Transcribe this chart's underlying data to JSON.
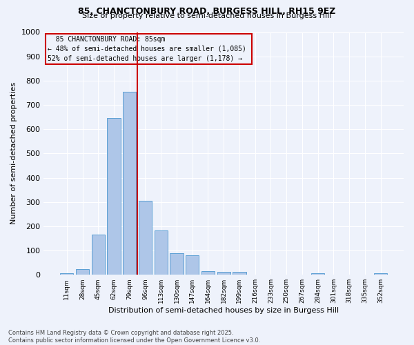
{
  "title": "85, CHANCTONBURY ROAD, BURGESS HILL, RH15 9EZ",
  "subtitle": "Size of property relative to semi-detached houses in Burgess Hill",
  "xlabel": "Distribution of semi-detached houses by size in Burgess Hill",
  "ylabel": "Number of semi-detached properties",
  "footnote": "Contains HM Land Registry data © Crown copyright and database right 2025.\nContains public sector information licensed under the Open Government Licence v3.0.",
  "categories": [
    "11sqm",
    "28sqm",
    "45sqm",
    "62sqm",
    "79sqm",
    "96sqm",
    "113sqm",
    "130sqm",
    "147sqm",
    "164sqm",
    "182sqm",
    "199sqm",
    "216sqm",
    "233sqm",
    "250sqm",
    "267sqm",
    "284sqm",
    "301sqm",
    "318sqm",
    "335sqm",
    "352sqm"
  ],
  "values": [
    5,
    22,
    165,
    645,
    755,
    305,
    182,
    90,
    80,
    15,
    13,
    12,
    0,
    0,
    0,
    0,
    5,
    0,
    0,
    0,
    5
  ],
  "bar_color": "#aec6e8",
  "bar_edge_color": "#5a9fd4",
  "vline_x_index": 4,
  "vline_color": "#cc0000",
  "subject_label": "85 CHANCTONBURY ROAD: 85sqm",
  "smaller_text": "← 48% of semi-detached houses are smaller (1,085)",
  "larger_text": "52% of semi-detached houses are larger (1,178) →",
  "annotation_box_color": "#cc0000",
  "bg_color": "#eef2fb",
  "ylim": [
    0,
    1000
  ],
  "yticks": [
    0,
    100,
    200,
    300,
    400,
    500,
    600,
    700,
    800,
    900,
    1000
  ]
}
